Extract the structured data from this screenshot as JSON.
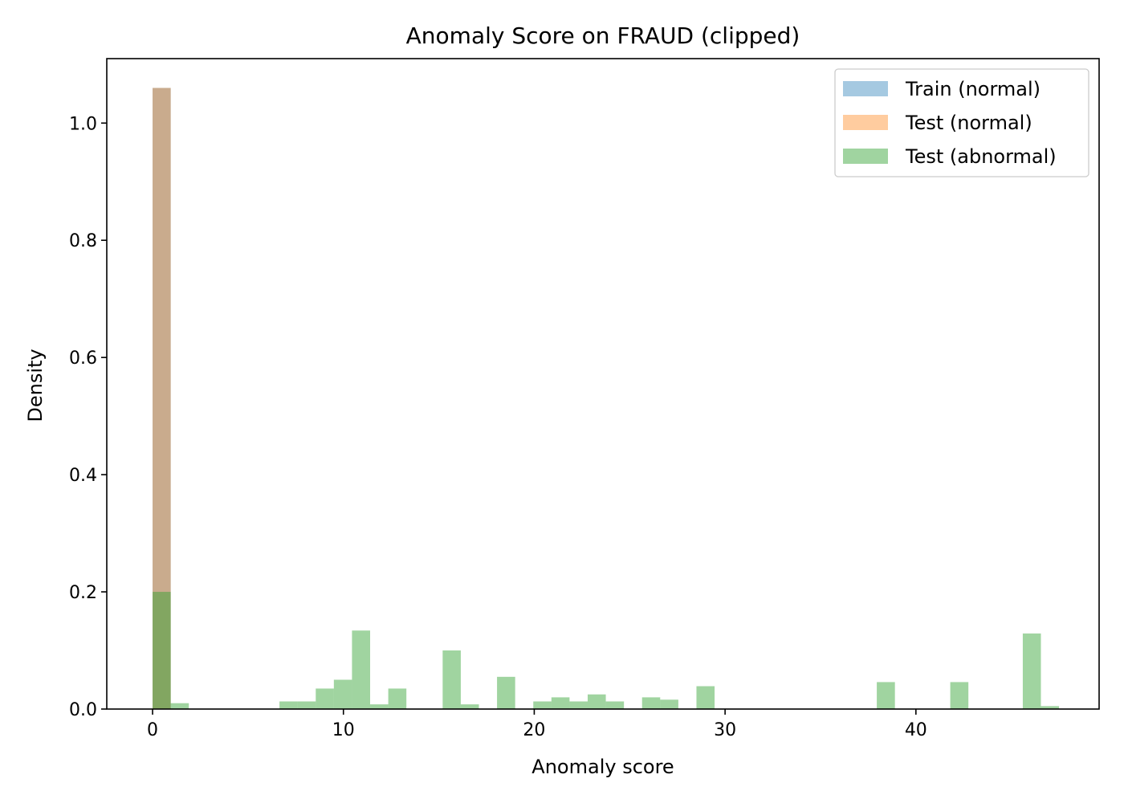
{
  "chart_data": {
    "type": "bar",
    "title": "Anomaly Score on FRAUD (clipped)",
    "xlabel": "Anomaly score",
    "ylabel": "Density",
    "xlim": [
      -2.4,
      49.6
    ],
    "ylim": [
      0,
      1.11
    ],
    "xticks": [
      0,
      10,
      20,
      30,
      40
    ],
    "yticks": [
      0.0,
      0.2,
      0.4,
      0.6,
      0.8,
      1.0
    ],
    "ytick_labels": [
      "0.0",
      "0.2",
      "0.4",
      "0.6",
      "0.8",
      "1.0"
    ],
    "grid": false,
    "legend_position": "top-right",
    "series": [
      {
        "name": "Train (normal)",
        "color": "#1f77b4",
        "alpha": 0.4,
        "bins": [
          [
            0.0,
            0.95,
            1.06
          ]
        ]
      },
      {
        "name": "Test (normal)",
        "color": "#ff7f0e",
        "alpha": 0.4,
        "bins": [
          [
            0.0,
            0.95,
            1.06
          ]
        ]
      },
      {
        "name": "Test (abnormal)",
        "color": "#2ca02c",
        "alpha": 0.45,
        "bins": [
          [
            0.0,
            0.95,
            0.2
          ],
          [
            0.95,
            1.9,
            0.01
          ],
          [
            6.65,
            7.6,
            0.013
          ],
          [
            7.6,
            8.55,
            0.013
          ],
          [
            8.55,
            9.5,
            0.035
          ],
          [
            9.5,
            10.45,
            0.05
          ],
          [
            10.45,
            11.4,
            0.134
          ],
          [
            11.4,
            12.35,
            0.008
          ],
          [
            12.35,
            13.3,
            0.035
          ],
          [
            15.2,
            16.15,
            0.1
          ],
          [
            16.15,
            17.1,
            0.008
          ],
          [
            18.05,
            19.0,
            0.055
          ],
          [
            19.95,
            20.9,
            0.013
          ],
          [
            20.9,
            21.85,
            0.02
          ],
          [
            21.85,
            22.8,
            0.013
          ],
          [
            22.8,
            23.75,
            0.025
          ],
          [
            23.75,
            24.7,
            0.013
          ],
          [
            25.65,
            26.6,
            0.02
          ],
          [
            26.6,
            27.55,
            0.016
          ],
          [
            28.5,
            29.45,
            0.039
          ],
          [
            37.95,
            38.9,
            0.046
          ],
          [
            41.8,
            42.75,
            0.046
          ],
          [
            45.6,
            46.55,
            0.129
          ],
          [
            46.55,
            47.5,
            0.005
          ]
        ]
      }
    ]
  }
}
